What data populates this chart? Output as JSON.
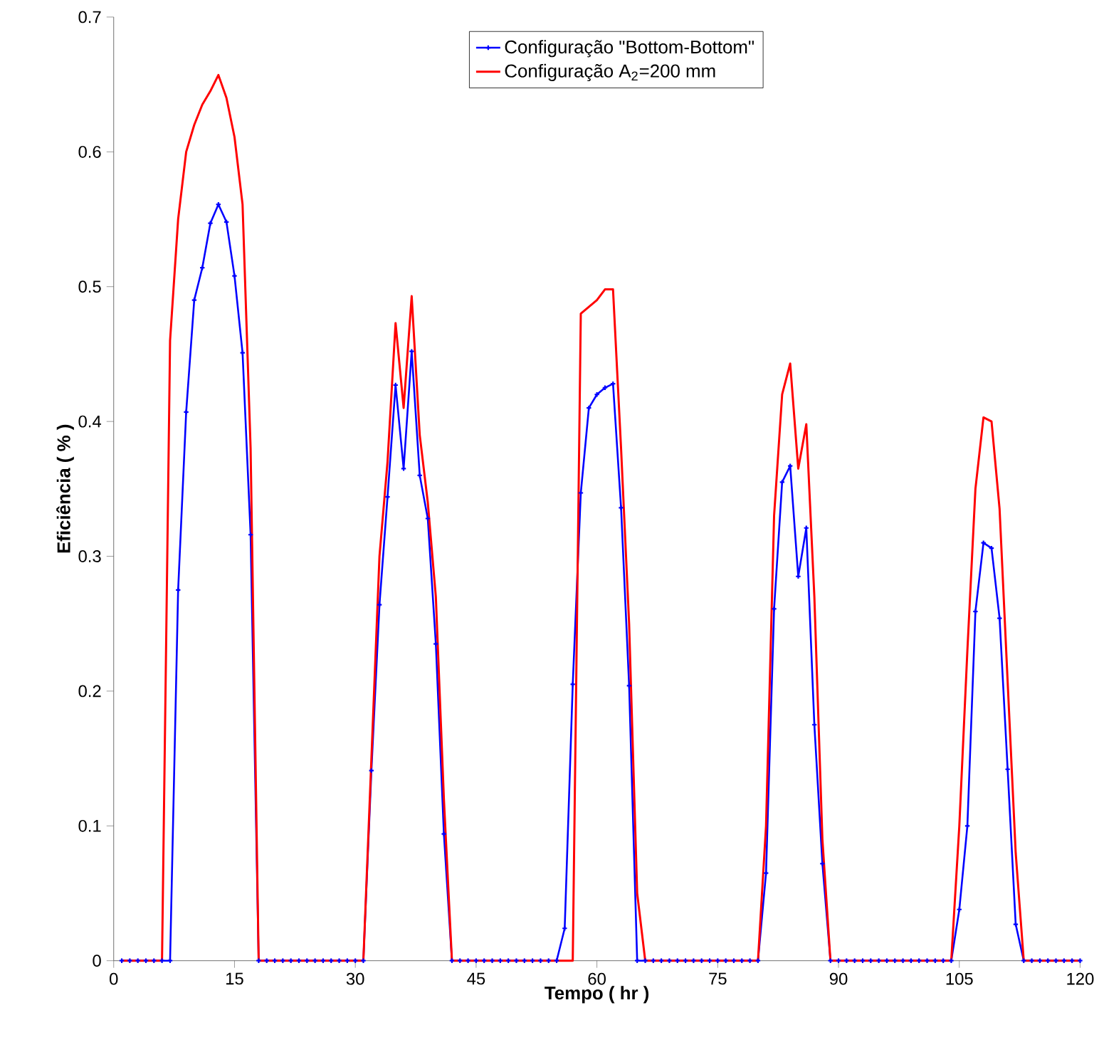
{
  "chart_data": {
    "type": "line",
    "xlabel": "Tempo ( hr )",
    "ylabel": "Eficiência ( % )",
    "x": [
      1,
      2,
      3,
      4,
      5,
      6,
      7,
      8,
      9,
      10,
      11,
      12,
      13,
      14,
      15,
      16,
      17,
      18,
      19,
      20,
      21,
      22,
      23,
      24,
      25,
      26,
      27,
      28,
      29,
      30,
      31,
      32,
      33,
      34,
      35,
      36,
      37,
      38,
      39,
      40,
      41,
      42,
      43,
      44,
      45,
      46,
      47,
      48,
      49,
      50,
      51,
      52,
      53,
      54,
      55,
      56,
      57,
      58,
      59,
      60,
      61,
      62,
      63,
      64,
      65,
      66,
      67,
      68,
      69,
      70,
      71,
      72,
      73,
      74,
      75,
      76,
      77,
      78,
      79,
      80,
      81,
      82,
      83,
      84,
      85,
      86,
      87,
      88,
      89,
      90,
      91,
      92,
      93,
      94,
      95,
      96,
      97,
      98,
      99,
      100,
      101,
      102,
      103,
      104,
      105,
      106,
      107,
      108,
      109,
      110,
      111,
      112,
      113,
      114,
      115,
      116,
      117,
      118,
      119,
      120
    ],
    "series": [
      {
        "name": "Configuração \"Bottom-Bottom\"",
        "color": "#0000ff",
        "marker": "cross",
        "values": [
          0,
          0,
          0,
          0,
          0,
          0,
          0,
          0.275,
          0.407,
          0.49,
          0.514,
          0.547,
          0.561,
          0.548,
          0.508,
          0.451,
          0.316,
          0,
          0,
          0,
          0,
          0,
          0,
          0,
          0,
          0,
          0,
          0,
          0,
          0,
          0,
          0.141,
          0.264,
          0.344,
          0.427,
          0.365,
          0.452,
          0.36,
          0.328,
          0.235,
          0.094,
          0,
          0,
          0,
          0,
          0,
          0,
          0,
          0,
          0,
          0,
          0,
          0,
          0,
          0,
          0.024,
          0.205,
          0.347,
          0.41,
          0.42,
          0.425,
          0.428,
          0.336,
          0.204,
          0,
          0,
          0,
          0,
          0,
          0,
          0,
          0,
          0,
          0,
          0,
          0,
          0,
          0,
          0,
          0,
          0.065,
          0.261,
          0.355,
          0.367,
          0.285,
          0.321,
          0.175,
          0.072,
          0,
          0,
          0,
          0,
          0,
          0,
          0,
          0,
          0,
          0,
          0,
          0,
          0,
          0,
          0,
          0,
          0.038,
          0.1,
          0.259,
          0.31,
          0.306,
          0.254,
          0.142,
          0.027,
          0,
          0,
          0,
          0,
          0,
          0,
          0,
          0
        ]
      },
      {
        "name": "Configuração A$_{2}$=200 mm",
        "color": "#ff0000",
        "marker": "none",
        "values": [
          0,
          0,
          0,
          0,
          0,
          0,
          0.46,
          0.55,
          0.6,
          0.62,
          0.635,
          0.645,
          0.657,
          0.64,
          0.611,
          0.561,
          0.38,
          0,
          0,
          0,
          0,
          0,
          0,
          0,
          0,
          0,
          0,
          0,
          0,
          0,
          0,
          0.15,
          0.3,
          0.37,
          0.473,
          0.41,
          0.493,
          0.39,
          0.34,
          0.27,
          0.12,
          0,
          0,
          0,
          0,
          0,
          0,
          0,
          0,
          0,
          0,
          0,
          0,
          0,
          0,
          0,
          0,
          0.48,
          0.485,
          0.49,
          0.498,
          0.498,
          0.38,
          0.25,
          0.05,
          0,
          0,
          0,
          0,
          0,
          0,
          0,
          0,
          0,
          0,
          0,
          0,
          0,
          0,
          0,
          0.1,
          0.33,
          0.42,
          0.443,
          0.365,
          0.398,
          0.27,
          0.09,
          0,
          0,
          0,
          0,
          0,
          0,
          0,
          0,
          0,
          0,
          0,
          0,
          0,
          0,
          0,
          0,
          0.1,
          0.23,
          0.35,
          0.403,
          0.4,
          0.335,
          0.207,
          0.08,
          0,
          0,
          0,
          0,
          0,
          0,
          0,
          0
        ]
      }
    ],
    "xlim": [
      0,
      120
    ],
    "xticks": [
      0,
      15,
      30,
      45,
      60,
      75,
      90,
      105,
      120
    ],
    "ylim": [
      0,
      0.7
    ],
    "yticks": [
      0,
      0.1,
      0.2,
      0.3,
      0.4,
      0.5,
      0.6,
      0.7
    ],
    "legend": "top"
  }
}
